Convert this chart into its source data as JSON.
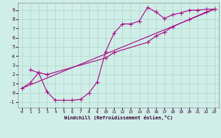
{
  "background_color": "#d0eee8",
  "grid_color": "#b0d8cc",
  "line_color": "#aa1188",
  "marker": "+",
  "markersize": 4,
  "linewidth": 0.9,
  "xlim": [
    -0.5,
    23.5
  ],
  "ylim": [
    -1.6,
    9.8
  ],
  "xticks": [
    0,
    1,
    2,
    3,
    4,
    5,
    6,
    7,
    8,
    9,
    10,
    11,
    12,
    13,
    14,
    15,
    16,
    17,
    18,
    19,
    20,
    21,
    22,
    23
  ],
  "yticks": [
    -1,
    0,
    1,
    2,
    3,
    4,
    5,
    6,
    7,
    8,
    9
  ],
  "xlabel": "Windchill (Refroidissement éolien,°C)",
  "series1_x": [
    0,
    1,
    2,
    3,
    4,
    5,
    6,
    7,
    8,
    9,
    10,
    11,
    12,
    13,
    14,
    15,
    16,
    17,
    18,
    19,
    20,
    21,
    22,
    23
  ],
  "series1_y": [
    0.5,
    1.1,
    2.2,
    0.1,
    -0.8,
    -0.8,
    -0.8,
    -0.7,
    0.0,
    1.2,
    4.5,
    6.5,
    7.5,
    7.5,
    7.8,
    9.3,
    8.8,
    8.1,
    8.5,
    8.7,
    9.0,
    9.0,
    9.1,
    9.1
  ],
  "series2_x": [
    1,
    2,
    3,
    10,
    11,
    15,
    16,
    17,
    18,
    20,
    22,
    23
  ],
  "series2_y": [
    2.5,
    2.2,
    2.0,
    3.8,
    4.4,
    5.5,
    6.2,
    6.6,
    7.2,
    8.0,
    8.8,
    9.1
  ],
  "series3_x": [
    0,
    23
  ],
  "series3_y": [
    0.5,
    9.1
  ]
}
